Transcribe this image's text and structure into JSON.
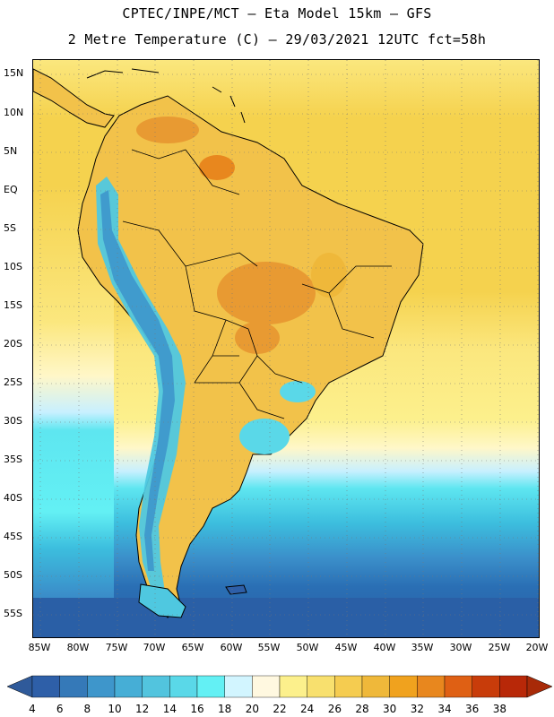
{
  "header": {
    "line1": "CPTEC/INPE/MCT –  Eta Model 15km – GFS",
    "line2": "2 Metre Temperature (C) – 29/03/2021 12UTC fct=58h"
  },
  "map": {
    "lat_labels": [
      "15N",
      "10N",
      "5N",
      "EQ",
      "5S",
      "10S",
      "15S",
      "20S",
      "25S",
      "30S",
      "35S",
      "40S",
      "45S",
      "50S",
      "55S"
    ],
    "lon_labels": [
      "85W",
      "80W",
      "75W",
      "70W",
      "65W",
      "60W",
      "55W",
      "50W",
      "45W",
      "40W",
      "35W",
      "30W",
      "25W",
      "20W"
    ],
    "colors": {
      "ocean_tropical": "#f5d24e",
      "ocean_warm": "#fbe77e",
      "ocean_mid": "#fff7c8",
      "ocean_cool": "#c8f0ff",
      "ocean_cold": "#5ee6f0",
      "ocean_colder": "#3cbede",
      "ocean_far_south": "#2a6fb4",
      "land_hot": "#e89a32",
      "land_warm": "#f2c24a",
      "andes": "#4fc8e0",
      "coastline": "#000000",
      "grid": "#777777"
    }
  },
  "colorbar": {
    "labels": [
      "4",
      "6",
      "8",
      "10",
      "12",
      "14",
      "16",
      "18",
      "20",
      "22",
      "24",
      "26",
      "28",
      "30",
      "32",
      "34",
      "36",
      "38"
    ],
    "colors": [
      "#2e5fa8",
      "#3579b8",
      "#3e96cb",
      "#46aed6",
      "#52c4de",
      "#5ad8e8",
      "#63f0f4",
      "#d2f5ff",
      "#fff8e0",
      "#fcf08c",
      "#f8e06e",
      "#f5cc50",
      "#efb83a",
      "#f0a21e",
      "#e8871e",
      "#df6014",
      "#c83c0a",
      "#b82808"
    ],
    "left_arrow_color": "#2f5a9a",
    "right_arrow_color": "#a82a08"
  }
}
